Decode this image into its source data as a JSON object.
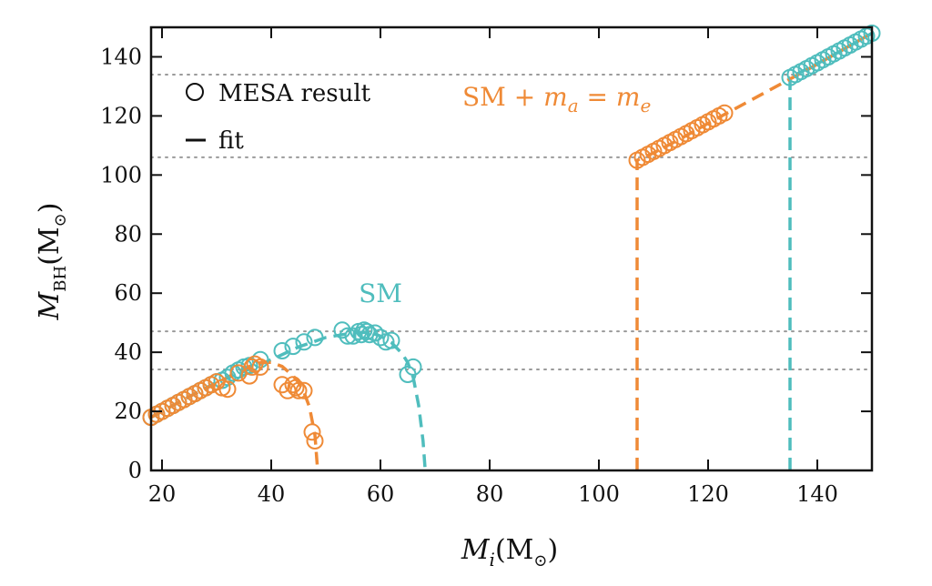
{
  "chart_data": {
    "type": "scatter",
    "xlim": [
      18,
      150
    ],
    "ylim": [
      0,
      150
    ],
    "xticks": [
      20,
      40,
      60,
      80,
      100,
      120,
      140
    ],
    "yticks": [
      0,
      20,
      40,
      60,
      80,
      100,
      120,
      140
    ],
    "xlabel": "M_i(M_⊙)",
    "ylabel": "M_BH(M_⊙)",
    "legend": {
      "position": "top-left",
      "entries": [
        {
          "marker": "circle",
          "label": "MESA result"
        },
        {
          "marker": "dash",
          "label": "fit"
        }
      ]
    },
    "reference_lines_y": [
      34.2,
      47.1,
      106.0,
      134.0
    ],
    "colors": {
      "sm": "#4fbdbd",
      "sm_plus": "#ef8a36"
    },
    "annotations": [
      {
        "text": "SM",
        "series": "SM"
      },
      {
        "text": "SM + m_a = m_e",
        "series": "SM + m_a = m_e"
      }
    ],
    "series": [
      {
        "name": "SM",
        "color": "#4fbdbd",
        "mesa_points": [
          [
            18,
            18
          ],
          [
            19,
            19
          ],
          [
            20,
            20
          ],
          [
            21,
            21
          ],
          [
            22,
            22
          ],
          [
            23,
            23
          ],
          [
            24,
            24
          ],
          [
            25,
            25
          ],
          [
            26,
            26
          ],
          [
            27,
            27
          ],
          [
            28,
            28
          ],
          [
            29,
            29
          ],
          [
            30,
            30
          ],
          [
            31,
            30.5
          ],
          [
            32,
            31.5
          ],
          [
            33,
            33
          ],
          [
            34,
            34
          ],
          [
            35,
            35
          ],
          [
            36,
            35.5
          ],
          [
            38,
            37.5
          ],
          [
            42,
            40.5
          ],
          [
            44,
            42
          ],
          [
            46,
            43.5
          ],
          [
            48,
            45
          ],
          [
            53,
            47.5
          ],
          [
            54,
            45.5
          ],
          [
            55,
            45.5
          ],
          [
            56,
            47
          ],
          [
            56.5,
            46
          ],
          [
            57,
            47.5
          ],
          [
            57.5,
            47
          ],
          [
            58,
            46
          ],
          [
            59,
            46.5
          ],
          [
            60,
            45
          ],
          [
            61,
            43.5
          ],
          [
            62,
            44
          ],
          [
            65,
            32.5
          ],
          [
            66,
            35
          ],
          [
            135,
            133
          ],
          [
            136,
            134
          ],
          [
            137,
            135
          ],
          [
            138,
            136
          ],
          [
            139,
            137
          ],
          [
            140,
            138
          ],
          [
            141,
            139
          ],
          [
            142,
            140
          ],
          [
            143,
            141
          ],
          [
            144,
            142
          ],
          [
            145,
            143
          ],
          [
            146,
            144
          ],
          [
            147,
            145
          ],
          [
            148,
            146
          ],
          [
            149,
            147
          ],
          [
            150,
            148
          ]
        ],
        "fit": [
          [
            18,
            18
          ],
          [
            25,
            25
          ],
          [
            30,
            29.8
          ],
          [
            35,
            33.5
          ],
          [
            40,
            37.5
          ],
          [
            45,
            41.8
          ],
          [
            50,
            45
          ],
          [
            55,
            46.6
          ],
          [
            58,
            46.8
          ],
          [
            60,
            45.5
          ],
          [
            62,
            43.3
          ],
          [
            64,
            39.5
          ],
          [
            65,
            36.5
          ],
          [
            66,
            31.5
          ],
          [
            67,
            22
          ],
          [
            67.8,
            10
          ],
          [
            68.2,
            0
          ],
          null,
          [
            135,
            0
          ],
          [
            135,
            133
          ],
          [
            140,
            137.7
          ],
          [
            145,
            142.7
          ],
          [
            150,
            148
          ]
        ]
      },
      {
        "name": "SM + m_a = m_e",
        "color": "#ef8a36",
        "mesa_points": [
          [
            18,
            18
          ],
          [
            19,
            19
          ],
          [
            20,
            20
          ],
          [
            21,
            21
          ],
          [
            22,
            22
          ],
          [
            23,
            23
          ],
          [
            24,
            24
          ],
          [
            25,
            25
          ],
          [
            26,
            26
          ],
          [
            27,
            27
          ],
          [
            28,
            28
          ],
          [
            29,
            29
          ],
          [
            30,
            30
          ],
          [
            31,
            28
          ],
          [
            32,
            27.5
          ],
          [
            34,
            33
          ],
          [
            36,
            32
          ],
          [
            36.5,
            35
          ],
          [
            37,
            36
          ],
          [
            38,
            35
          ],
          [
            42,
            29
          ],
          [
            43,
            27
          ],
          [
            44,
            29
          ],
          [
            44.5,
            28
          ],
          [
            45,
            27
          ],
          [
            46,
            27
          ],
          [
            47.5,
            13
          ],
          [
            48,
            10
          ],
          [
            107,
            105
          ],
          [
            108,
            106
          ],
          [
            109,
            107
          ],
          [
            110,
            108
          ],
          [
            111,
            109
          ],
          [
            112,
            110
          ],
          [
            113,
            111
          ],
          [
            114,
            112
          ],
          [
            115,
            113
          ],
          [
            116,
            114
          ],
          [
            117,
            115
          ],
          [
            118,
            116
          ],
          [
            119,
            117
          ],
          [
            120,
            118
          ],
          [
            121,
            119
          ],
          [
            122,
            120
          ],
          [
            123,
            121
          ]
        ],
        "fit": [
          [
            18,
            18
          ],
          [
            25,
            25
          ],
          [
            30,
            29.5
          ],
          [
            34,
            33.5
          ],
          [
            36,
            35.2
          ],
          [
            38,
            36.5
          ],
          [
            40,
            36.6
          ],
          [
            42,
            35.2
          ],
          [
            44,
            32
          ],
          [
            45,
            29.8
          ],
          [
            46,
            26.5
          ],
          [
            47,
            21.5
          ],
          [
            48,
            12
          ],
          [
            48.5,
            0
          ],
          null,
          [
            107,
            0
          ],
          [
            107,
            105
          ],
          [
            110,
            107.5
          ],
          [
            115,
            112.3
          ],
          [
            120,
            117.5
          ],
          [
            125,
            122.5
          ],
          [
            130,
            127.5
          ],
          [
            135,
            132.5
          ],
          [
            140,
            137.5
          ],
          [
            145,
            142.8
          ],
          [
            150,
            148
          ]
        ]
      }
    ]
  }
}
